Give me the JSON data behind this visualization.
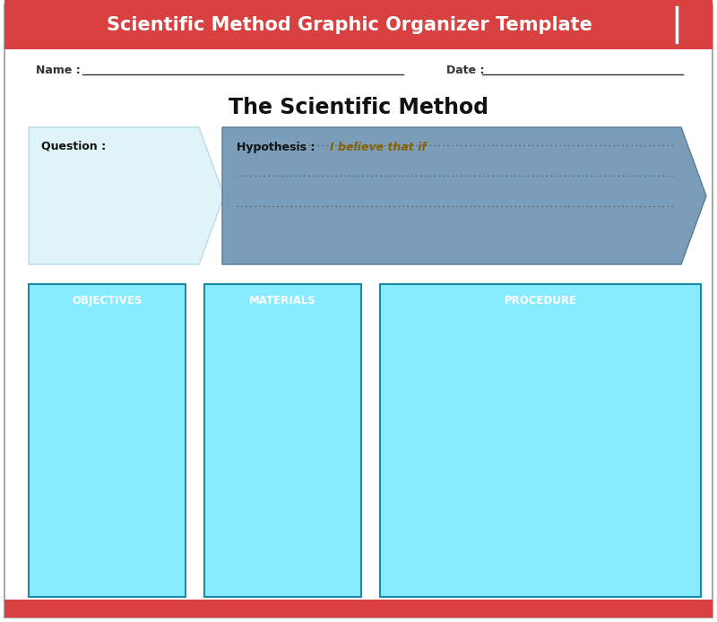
{
  "title": "Scientific Method Graphic Organizer Template",
  "subtitle": "The Scientific Method",
  "bg_color": "#FFFFFF",
  "header_bg": "#D94040",
  "header_text_color": "#FFFFFF",
  "header_fontsize": 15,
  "subtitle_fontsize": 17,
  "name_label": "Name :",
  "date_label": "Date :",
  "question_label": "Question :",
  "question_box_color": "#DFF4F8",
  "hypothesis_label": "Hypothesis :",
  "hypothesis_italic": "I believe that if",
  "hypothesis_arrow_color": "#7A9EBA",
  "box_labels": [
    "OBJECTIVES",
    "MATERIALS",
    "PROCEDURE"
  ],
  "box_color": "#87ECFF",
  "box_border_color": "#1A8AAA",
  "footer_color": "#D94040",
  "border_color": "#333333"
}
